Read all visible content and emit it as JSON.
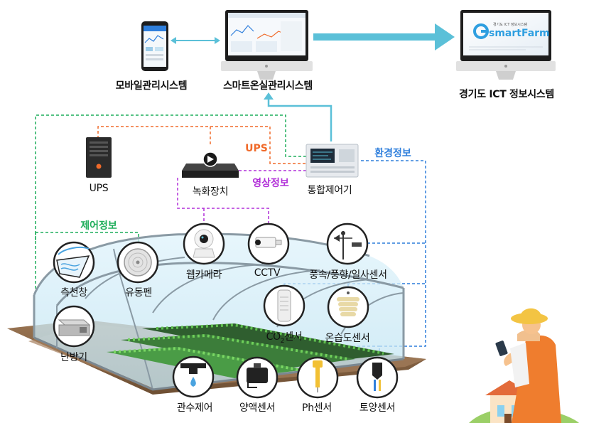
{
  "systems": {
    "mobile": "모바일관리시스템",
    "smart": "스마트온실관리시스템",
    "gyeonggi": "경기도 ICT 정보시스템",
    "screen_brand": "smartFarm",
    "screen_sub": "경기도 ICT 정보시스템"
  },
  "devices": {
    "ups": "UPS",
    "recorder": "녹화장치",
    "controller": "통합제어기"
  },
  "flows": {
    "ups": "UPS",
    "video": "영상정보",
    "environment": "환경정보",
    "control": "제어정보"
  },
  "sensors": {
    "side_window": "측천창",
    "fan": "유동펜",
    "heater": "난방기",
    "webcam": "웹카메라",
    "cctv": "CCTV",
    "weather": "풍속/풍향/일사센서",
    "co2_prefix": "CO",
    "co2_sub": "2",
    "co2_suffix": "센서",
    "temp_humidity": "온습도센서",
    "irrigation": "관수제어",
    "nutrient": "양액센서",
    "ph": "Ph센서",
    "soil": "토양센서"
  },
  "colors": {
    "green_line": "#1fae5b",
    "orange_line": "#f06a2a",
    "purple_line": "#b12fd8",
    "blue_line": "#2f7fdc",
    "arrow_cyan": "#5bc0d8",
    "ups_label": "#f06a2a",
    "video_label": "#b12fd8",
    "env_label": "#2f7fdc",
    "control_label": "#1fae5b"
  }
}
